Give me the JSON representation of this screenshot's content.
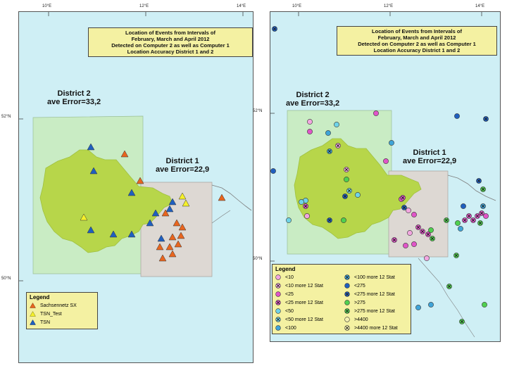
{
  "left_map": {
    "title_lines": [
      "Location of Events from Intervals of",
      "February, March and April 2012",
      "Detected on Computer 2 as well as Computer 1",
      "Location Accuracy District 1 and 2"
    ],
    "top_ticks": [
      "10°E",
      "12°E",
      "14°E"
    ],
    "side_ticks": [
      "52°N",
      "50°N"
    ],
    "district2_line1": "District 2",
    "district2_line2": "ave Error=33,2",
    "district1_line1": "District 1",
    "district1_line2": "ave Error=22,9",
    "legend": {
      "title": "Legend",
      "items": [
        {
          "label": "Sachsennetz SX",
          "color": "#e8651e"
        },
        {
          "label": "TSN_Test",
          "color": "#f5f02a"
        },
        {
          "label": "TSN",
          "color": "#1f5fbf"
        }
      ]
    }
  },
  "right_map": {
    "title_lines": [
      "Location of Events from Intervals of",
      "February, March and April 2012",
      "Detected on Computer 2 as well as Computer 1",
      "Location Accuracy District 1 and 2"
    ],
    "top_ticks": [
      "10°E",
      "12°E",
      "14°E"
    ],
    "side_ticks": [
      "52°N",
      "50°N"
    ],
    "district2_line1": "District 2",
    "district2_line2": "ave Error=33,2",
    "district1_line1": "District 1",
    "district1_line2": "ave Error=22,9",
    "legend": {
      "title": "Legend",
      "col1": [
        {
          "label": "<10",
          "color": "#f2a6e0",
          "crossed": false
        },
        {
          "label": "<10 more 12 Stat",
          "color": "#f2a6e0",
          "crossed": true
        },
        {
          "label": "<25",
          "color": "#e055c8",
          "crossed": false
        },
        {
          "label": "<25 more 12 Stat",
          "color": "#e055c8",
          "crossed": true
        },
        {
          "label": "<50",
          "color": "#6fd3e8",
          "crossed": false
        },
        {
          "label": "<50 more 12 Stat",
          "color": "#6fd3e8",
          "crossed": true
        },
        {
          "label": "<100",
          "color": "#3fa4d8",
          "crossed": false
        }
      ],
      "col2": [
        {
          "label": "<100 more 12 Stat",
          "color": "#3fa4d8",
          "crossed": true
        },
        {
          "label": "<275",
          "color": "#1f5fbf",
          "crossed": false
        },
        {
          "label": "<275 more 12 Stat",
          "color": "#1f5fbf",
          "crossed": true
        },
        {
          "label": ">275",
          "color": "#4fd04f",
          "crossed": false
        },
        {
          "label": ">275 more 12 Stat",
          "color": "#4fd04f",
          "crossed": true
        },
        {
          "label": ">4400",
          "color": "#f5f0b0",
          "crossed": false
        },
        {
          "label": ">4400 more 12 Stat",
          "color": "#f5f0b0",
          "crossed": true
        }
      ]
    }
  }
}
